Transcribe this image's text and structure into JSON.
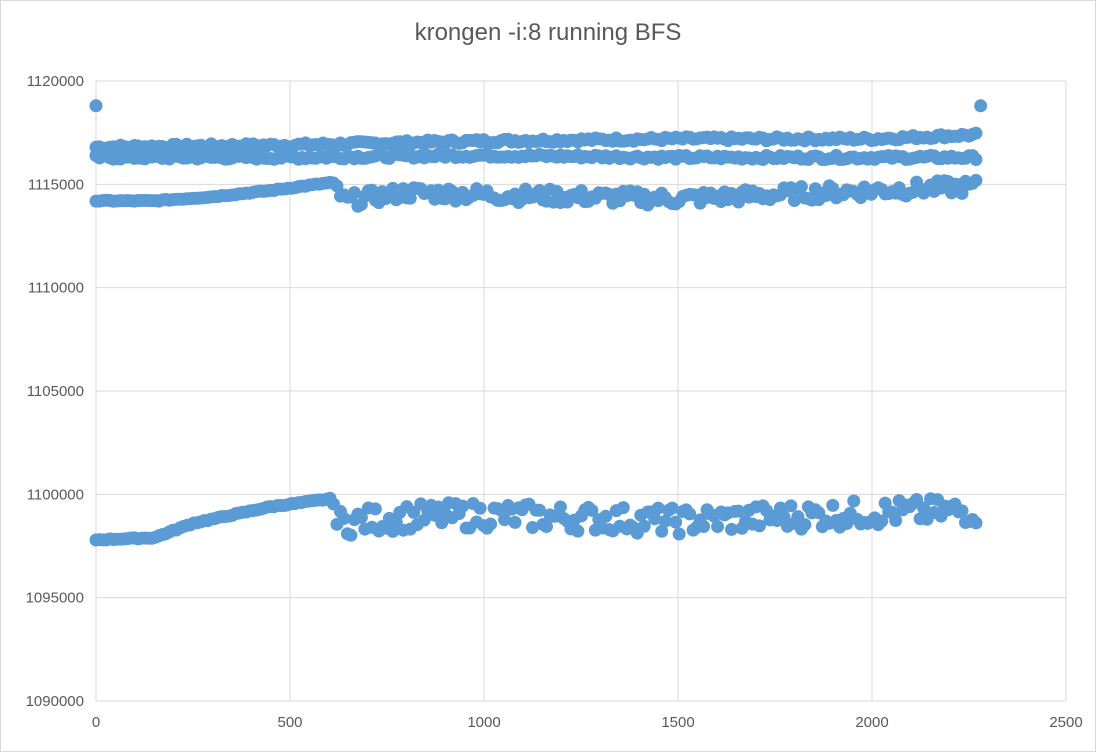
{
  "chart_data": {
    "type": "scatter",
    "title": "krongen -i:8 running BFS",
    "xlabel": "",
    "ylabel": "",
    "xlim": [
      0,
      2500
    ],
    "ylim": [
      1090000,
      1120000
    ],
    "xticks": [
      0,
      500,
      1000,
      1500,
      2000,
      2500
    ],
    "yticks": [
      1090000,
      1095000,
      1100000,
      1105000,
      1110000,
      1115000,
      1120000
    ],
    "grid": true,
    "legend": "none",
    "marker_color": "#5b9bd5",
    "series": [
      {
        "bands": [
          {
            "band": "top-upper",
            "trend": [
              [
                0,
                1116800
              ],
              [
                500,
                1116900
              ],
              [
                1000,
                1117100
              ],
              [
                1500,
                1117200
              ],
              [
                2000,
                1117200
              ],
              [
                2270,
                1117400
              ]
            ]
          },
          {
            "band": "top-lower",
            "trend": [
              [
                0,
                1116300
              ],
              [
                500,
                1116300
              ],
              [
                1000,
                1116400
              ],
              [
                1500,
                1116300
              ],
              [
                2000,
                1116300
              ],
              [
                2270,
                1116300
              ]
            ]
          },
          {
            "band": "middle",
            "trend": [
              [
                0,
                1114200
              ],
              [
                150,
                1114200
              ],
              [
                300,
                1114400
              ],
              [
                450,
                1114700
              ],
              [
                610,
                1115100
              ],
              [
                640,
                1114200
              ],
              [
                800,
                1114600
              ],
              [
                1000,
                1114500
              ],
              [
                1500,
                1114300
              ],
              [
                2000,
                1114700
              ],
              [
                2270,
                1114900
              ]
            ]
          },
          {
            "band": "bottom",
            "trend": [
              [
                0,
                1097800
              ],
              [
                150,
                1097900
              ],
              [
                250,
                1098600
              ],
              [
                350,
                1099000
              ],
              [
                450,
                1099400
              ],
              [
                610,
                1099800
              ],
              [
                620,
                1098600
              ],
              [
                800,
                1098900
              ],
              [
                1000,
                1099000
              ],
              [
                1500,
                1098700
              ],
              [
                2000,
                1099100
              ],
              [
                2270,
                1099200
              ]
            ]
          }
        ],
        "outliers": [
          [
            0,
            1118800
          ],
          [
            2280,
            1118800
          ]
        ]
      }
    ]
  }
}
